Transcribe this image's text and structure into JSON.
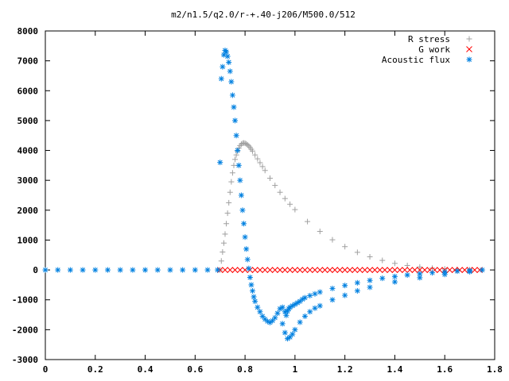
{
  "chart_data": {
    "type": "scatter",
    "title": "m2/n1.5/q2.0/r-+.40-j206/M500.0/512",
    "xlim": [
      0,
      1.8
    ],
    "ylim": [
      -3000,
      8000
    ],
    "xticks": [
      0,
      0.2,
      0.4,
      0.6,
      0.8,
      1,
      1.2,
      1.4,
      1.6,
      1.8
    ],
    "xtick_labels": [
      "0",
      "0.2",
      "0.4",
      "0.6",
      "0.8",
      "1",
      "1.2",
      "1.4",
      "1.6",
      "1.8"
    ],
    "yticks": [
      -3000,
      -2000,
      -1000,
      0,
      1000,
      2000,
      3000,
      4000,
      5000,
      6000,
      7000,
      8000
    ],
    "ytick_labels": [
      "-3000",
      "-2000",
      "-1000",
      "0",
      "1000",
      "2000",
      "3000",
      "4000",
      "5000",
      "6000",
      "7000",
      "8000"
    ],
    "grid": false,
    "legend_position": "top-right",
    "series": [
      {
        "name": "R stress",
        "marker": "plus",
        "color": "#a0a0a0",
        "x": [
          0.7,
          0.705,
          0.71,
          0.715,
          0.72,
          0.725,
          0.73,
          0.735,
          0.74,
          0.745,
          0.75,
          0.755,
          0.76,
          0.765,
          0.77,
          0.775,
          0.78,
          0.785,
          0.79,
          0.795,
          0.8,
          0.805,
          0.81,
          0.815,
          0.82,
          0.825,
          0.83,
          0.84,
          0.85,
          0.86,
          0.87,
          0.88,
          0.9,
          0.92,
          0.94,
          0.96,
          0.98,
          1.0,
          1.05,
          1.1,
          1.15,
          1.2,
          1.25,
          1.3,
          1.35,
          1.4,
          1.45,
          1.5,
          1.55,
          1.6,
          1.65,
          1.7,
          1.75
        ],
        "y": [
          0,
          300,
          600,
          900,
          1200,
          1550,
          1900,
          2250,
          2600,
          2950,
          3250,
          3500,
          3700,
          3850,
          3980,
          4080,
          4160,
          4210,
          4240,
          4250,
          4240,
          4220,
          4190,
          4150,
          4100,
          4040,
          3980,
          3850,
          3720,
          3590,
          3460,
          3330,
          3070,
          2830,
          2600,
          2390,
          2200,
          2020,
          1620,
          1290,
          1010,
          780,
          590,
          440,
          320,
          220,
          150,
          100,
          60,
          35,
          18,
          8,
          0
        ]
      },
      {
        "name": "G work",
        "marker": "cross",
        "color": "#ff0000",
        "x": [
          0.7,
          0.72,
          0.74,
          0.76,
          0.78,
          0.8,
          0.82,
          0.84,
          0.86,
          0.88,
          0.9,
          0.92,
          0.94,
          0.96,
          0.98,
          1.0,
          1.02,
          1.04,
          1.06,
          1.08,
          1.1,
          1.12,
          1.14,
          1.16,
          1.18,
          1.2,
          1.22,
          1.24,
          1.26,
          1.28,
          1.3,
          1.32,
          1.34,
          1.36,
          1.38,
          1.4,
          1.42,
          1.44,
          1.46,
          1.48,
          1.5,
          1.52,
          1.54,
          1.56,
          1.58,
          1.6,
          1.62,
          1.64,
          1.66,
          1.68,
          1.7,
          1.72,
          1.74
        ],
        "y": [
          0,
          0,
          0,
          0,
          0,
          0,
          0,
          0,
          0,
          0,
          0,
          0,
          0,
          0,
          0,
          0,
          0,
          0,
          0,
          0,
          0,
          0,
          0,
          0,
          0,
          0,
          0,
          0,
          0,
          0,
          0,
          0,
          0,
          0,
          0,
          0,
          0,
          0,
          0,
          0,
          0,
          0,
          0,
          0,
          0,
          0,
          0,
          0,
          0,
          0,
          0,
          0,
          0
        ]
      },
      {
        "name": "Acoustic flux",
        "marker": "star",
        "color": "#0080e0",
        "x": [
          0,
          0.05,
          0.1,
          0.15,
          0.2,
          0.25,
          0.3,
          0.35,
          0.4,
          0.45,
          0.5,
          0.55,
          0.6,
          0.65,
          0.69,
          0.7,
          0.705,
          0.71,
          0.715,
          0.72,
          0.725,
          0.73,
          0.735,
          0.74,
          0.745,
          0.75,
          0.755,
          0.76,
          0.765,
          0.77,
          0.775,
          0.78,
          0.785,
          0.79,
          0.795,
          0.8,
          0.805,
          0.81,
          0.815,
          0.82,
          0.825,
          0.83,
          0.835,
          0.84,
          0.85,
          0.86,
          0.87,
          0.88,
          0.89,
          0.9,
          0.91,
          0.92,
          0.93,
          0.94,
          0.95,
          0.96,
          0.965,
          0.97,
          0.975,
          0.98,
          0.99,
          1.0,
          1.01,
          1.02,
          1.03,
          1.04,
          1.06,
          1.08,
          1.1,
          1.15,
          1.2,
          1.25,
          1.3,
          1.35,
          1.4,
          1.45,
          1.5,
          1.55,
          1.6,
          1.65,
          1.7,
          1.75,
          0.95,
          0.96,
          0.97,
          0.98,
          0.99,
          1.0,
          1.02,
          1.04,
          1.06,
          1.08,
          1.1,
          1.15,
          1.2,
          1.25,
          1.3,
          1.4,
          1.5,
          1.6,
          1.7
        ],
        "y": [
          0,
          0,
          0,
          0,
          0,
          0,
          0,
          0,
          0,
          0,
          0,
          0,
          0,
          0,
          0,
          3600,
          6400,
          6800,
          7200,
          7350,
          7300,
          7150,
          6950,
          6650,
          6300,
          5850,
          5450,
          5000,
          4500,
          4000,
          3500,
          3000,
          2500,
          2000,
          1550,
          1100,
          700,
          350,
          50,
          -250,
          -500,
          -700,
          -900,
          -1050,
          -1250,
          -1400,
          -1550,
          -1650,
          -1720,
          -1760,
          -1700,
          -1600,
          -1450,
          -1300,
          -1250,
          -1400,
          -1520,
          -1380,
          -1300,
          -1250,
          -1200,
          -1150,
          -1100,
          -1050,
          -980,
          -930,
          -860,
          -800,
          -740,
          -620,
          -520,
          -430,
          -350,
          -280,
          -220,
          -170,
          -130,
          -95,
          -65,
          -40,
          -20,
          0,
          -1800,
          -2100,
          -2300,
          -2250,
          -2150,
          -2000,
          -1750,
          -1550,
          -1400,
          -1280,
          -1200,
          -1000,
          -850,
          -700,
          -580,
          -400,
          -260,
          -150,
          -60
        ]
      }
    ]
  }
}
